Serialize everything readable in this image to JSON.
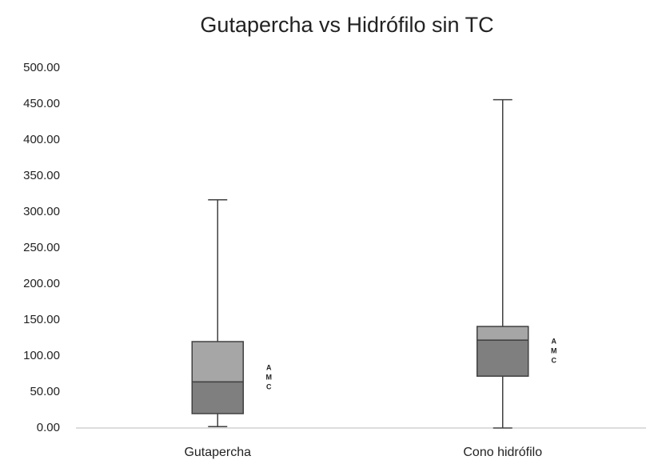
{
  "chart_data": {
    "type": "box",
    "title": "Gutapercha vs Hidrófilo sin TC",
    "categories": [
      "Gutapercha",
      "Cono hidrófilo"
    ],
    "series": [
      {
        "min": [
          2,
          0
        ],
        "q1": [
          20,
          72
        ],
        "median": [
          64,
          122
        ],
        "q3": [
          120,
          141
        ],
        "max": [
          317,
          456
        ]
      }
    ],
    "box_labels": [
      [
        "A",
        "M",
        "C"
      ],
      [
        "A",
        "M",
        "C"
      ]
    ],
    "colors": {
      "upper": "#a6a6a6",
      "lower": "#7f7f7f",
      "edge": "#404040"
    },
    "ylim": [
      0,
      500
    ],
    "yticks": [
      {
        "value": 0,
        "label": "0.00"
      },
      {
        "value": 50,
        "label": "50.00"
      },
      {
        "value": 100,
        "label": "100.00"
      },
      {
        "value": 150,
        "label": "150.00"
      },
      {
        "value": 200,
        "label": "200.00"
      },
      {
        "value": 250,
        "label": "250.00"
      },
      {
        "value": 300,
        "label": "300.00"
      },
      {
        "value": 350,
        "label": "350.00"
      },
      {
        "value": 400,
        "label": "400.00"
      },
      {
        "value": 450,
        "label": "450.00"
      },
      {
        "value": 500,
        "label": "500.00"
      }
    ],
    "grid": false
  }
}
